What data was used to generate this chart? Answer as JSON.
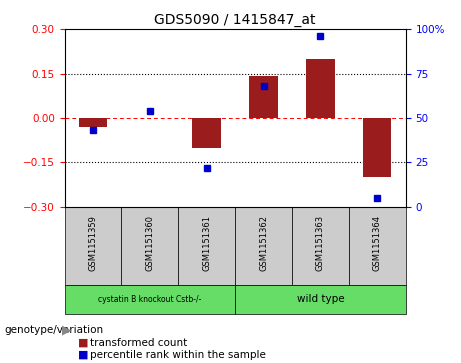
{
  "title": "GDS5090 / 1415847_at",
  "samples": [
    "GSM1151359",
    "GSM1151360",
    "GSM1151361",
    "GSM1151362",
    "GSM1151363",
    "GSM1151364"
  ],
  "transformed_count": [
    -0.03,
    0.0,
    -0.1,
    0.14,
    0.2,
    -0.2
  ],
  "percentile_rank": [
    43,
    54,
    22,
    68,
    96,
    5
  ],
  "bar_color": "#9B1C1C",
  "dot_color": "#0000CC",
  "ylim_left": [
    -0.3,
    0.3
  ],
  "ylim_right": [
    0,
    100
  ],
  "yticks_left": [
    -0.3,
    -0.15,
    0,
    0.15,
    0.3
  ],
  "yticks_right": [
    0,
    25,
    50,
    75,
    100
  ],
  "dotted_lines": [
    -0.15,
    0.15
  ],
  "legend_transformed": "transformed count",
  "legend_percentile": "percentile rank within the sample",
  "genotype_label": "genotype/variation",
  "group1_label": "cystatin B knockout Cstb-/-",
  "group2_label": "wild type",
  "group1_color": "#cccccc",
  "group2_color": "#66DD66",
  "sample_box_color": "#cccccc",
  "bar_width": 0.5,
  "background_color": "#ffffff"
}
